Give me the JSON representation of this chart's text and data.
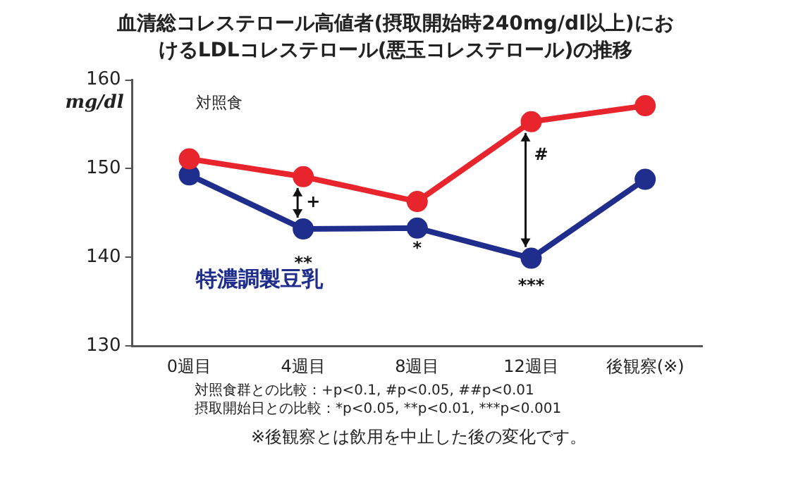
{
  "chart_data": {
    "type": "line",
    "title": "血清総コレステロール高値者(摂取開始時240mg/dl以上)におけるLDLコレステロール(悪玉コレステロール)の推移",
    "ylabel": "mg/dl",
    "categories": [
      "0週目",
      "4週目",
      "8週目",
      "12週目",
      "後観察(※)"
    ],
    "series": [
      {
        "name": "対照食",
        "color": "#e8242c",
        "values": [
          151.1,
          149.1,
          146.3,
          155.3,
          157.1
        ]
      },
      {
        "name": "特濃調製豆乳",
        "color": "#1f2d8c",
        "values": [
          149.3,
          143.2,
          143.3,
          139.9,
          148.8
        ]
      }
    ],
    "ylim": [
      130,
      160
    ],
    "yticks": [
      130,
      140,
      150,
      160
    ],
    "grid": false,
    "legend": false,
    "marker": "circle",
    "line_style": "solid",
    "annotations": [
      {
        "text": "+",
        "x": "4週目",
        "y": 149.1
      },
      {
        "text": "#",
        "x": "12週目",
        "y": 155.3
      },
      {
        "text": "**",
        "x": "4週目",
        "y": 143.2
      },
      {
        "text": "*",
        "x": "8週目",
        "y": 143.3
      },
      {
        "text": "***",
        "x": "12週目",
        "y": 139.9
      },
      "対照食群との比較：+p<0.1, #p<0.05, ##p<0.01",
      "摂取開始日との比較：*p<0.05, **p<0.01, ***p<0.001",
      "※後観察とは飲用を中止した後の変化です。"
    ]
  }
}
